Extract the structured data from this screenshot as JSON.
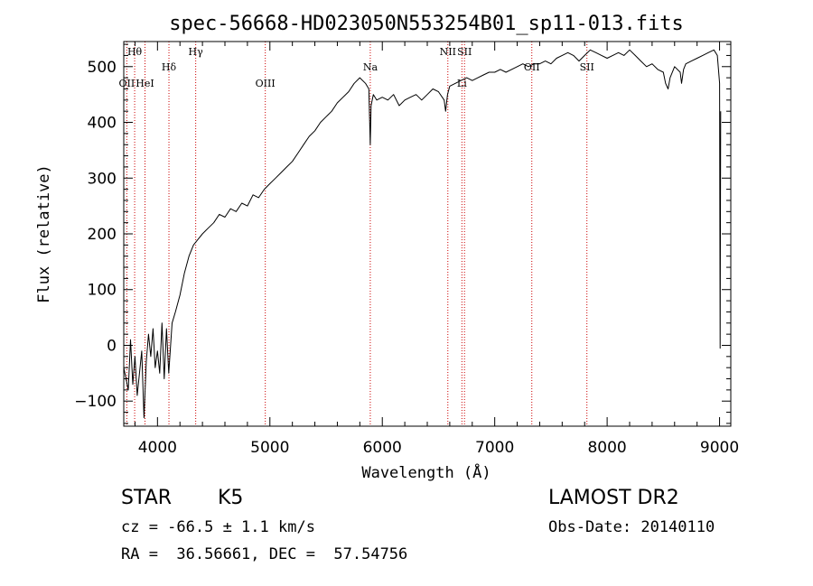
{
  "chart_data": {
    "type": "line",
    "title": "spec-56668-HD023050N553254B01_sp11-013.fits",
    "xlabel": "Wavelength (Å)",
    "ylabel": "Flux (relative)",
    "xlim": [
      3700,
      9100
    ],
    "ylim": [
      -145,
      545
    ],
    "x_ticks": [
      4000,
      5000,
      6000,
      7000,
      8000,
      9000
    ],
    "y_ticks": [
      -100,
      0,
      100,
      200,
      300,
      400,
      500
    ],
    "grid": false,
    "colors": {
      "spectrum": "#000000",
      "line_markers": "#cc0000"
    },
    "series": [
      {
        "x": [
          3700,
          3720,
          3740,
          3760,
          3780,
          3800,
          3820,
          3840,
          3860,
          3880,
          3900,
          3920,
          3940,
          3960,
          3980,
          4000,
          4020,
          4040,
          4060,
          4080,
          4100,
          4130,
          4160,
          4200,
          4240,
          4280,
          4320,
          4360,
          4400,
          4450,
          4500,
          4550,
          4600,
          4650,
          4700,
          4750,
          4800,
          4850,
          4900,
          4950,
          5000,
          5050,
          5100,
          5150,
          5200,
          5250,
          5300,
          5350,
          5400,
          5450,
          5500,
          5550,
          5600,
          5650,
          5700,
          5750,
          5800,
          5850,
          5880,
          5893,
          5900,
          5920,
          5950,
          6000,
          6050,
          6100,
          6150,
          6200,
          6250,
          6300,
          6350,
          6400,
          6450,
          6500,
          6550,
          6563,
          6580,
          6600,
          6650,
          6700,
          6750,
          6800,
          6850,
          6900,
          6950,
          7000,
          7050,
          7100,
          7150,
          7200,
          7250,
          7300,
          7350,
          7400,
          7450,
          7500,
          7550,
          7600,
          7650,
          7700,
          7750,
          7800,
          7850,
          7900,
          7950,
          8000,
          8050,
          8100,
          8150,
          8200,
          8250,
          8300,
          8350,
          8400,
          8450,
          8500,
          8520,
          8542,
          8560,
          8600,
          8650,
          8662,
          8680,
          8700,
          8750,
          8800,
          8850,
          8900,
          8950,
          8980,
          9000,
          9005,
          9010
        ],
        "y": [
          -40,
          -60,
          -80,
          10,
          -70,
          -20,
          -90,
          -50,
          -10,
          -130,
          -30,
          20,
          -20,
          30,
          -40,
          -10,
          -50,
          40,
          -60,
          30,
          -50,
          40,
          60,
          90,
          130,
          160,
          180,
          190,
          200,
          210,
          220,
          235,
          230,
          245,
          240,
          255,
          250,
          270,
          265,
          280,
          290,
          300,
          310,
          320,
          330,
          345,
          360,
          375,
          385,
          400,
          410,
          420,
          435,
          445,
          455,
          470,
          480,
          470,
          460,
          360,
          430,
          450,
          440,
          445,
          440,
          450,
          430,
          440,
          445,
          450,
          440,
          450,
          460,
          455,
          440,
          420,
          450,
          465,
          470,
          475,
          480,
          475,
          480,
          485,
          490,
          490,
          495,
          490,
          495,
          500,
          505,
          500,
          505,
          505,
          510,
          505,
          515,
          520,
          525,
          520,
          510,
          520,
          530,
          525,
          520,
          515,
          520,
          525,
          520,
          530,
          520,
          510,
          500,
          505,
          495,
          490,
          470,
          460,
          480,
          500,
          490,
          470,
          495,
          505,
          510,
          515,
          520,
          525,
          530,
          520,
          470,
          -5,
          420
        ]
      }
    ],
    "line_markers": [
      {
        "label": "Hθ",
        "x": 3797,
        "row": "top"
      },
      {
        "label": "OII",
        "x": 3727,
        "row": "bottom"
      },
      {
        "label": "HeI",
        "x": 3889,
        "row": "bottom"
      },
      {
        "label": "Hδ",
        "x": 4102,
        "row": "mid"
      },
      {
        "label": "Hγ",
        "x": 4340,
        "row": "top"
      },
      {
        "label": "OIII",
        "x": 4959,
        "row": "bottom"
      },
      {
        "label": "Na",
        "x": 5893,
        "row": "mid"
      },
      {
        "label": "NII",
        "x": 6583,
        "row": "top"
      },
      {
        "label": "Li",
        "x": 6708,
        "row": "bottom"
      },
      {
        "label": "SII",
        "x": 6731,
        "row": "top"
      },
      {
        "label": "OII",
        "x": 7330,
        "row": "mid"
      },
      {
        "label": "SII",
        "x": 7820,
        "row": "mid"
      }
    ]
  },
  "info": {
    "object_class": "STAR",
    "subclass": "K5",
    "cz": "cz = -66.5 ± 1.1 km/s",
    "coords": "RA =  36.56661, DEC =  57.54756",
    "survey": "LAMOST DR2",
    "obs_date": "Obs-Date: 20140110"
  }
}
